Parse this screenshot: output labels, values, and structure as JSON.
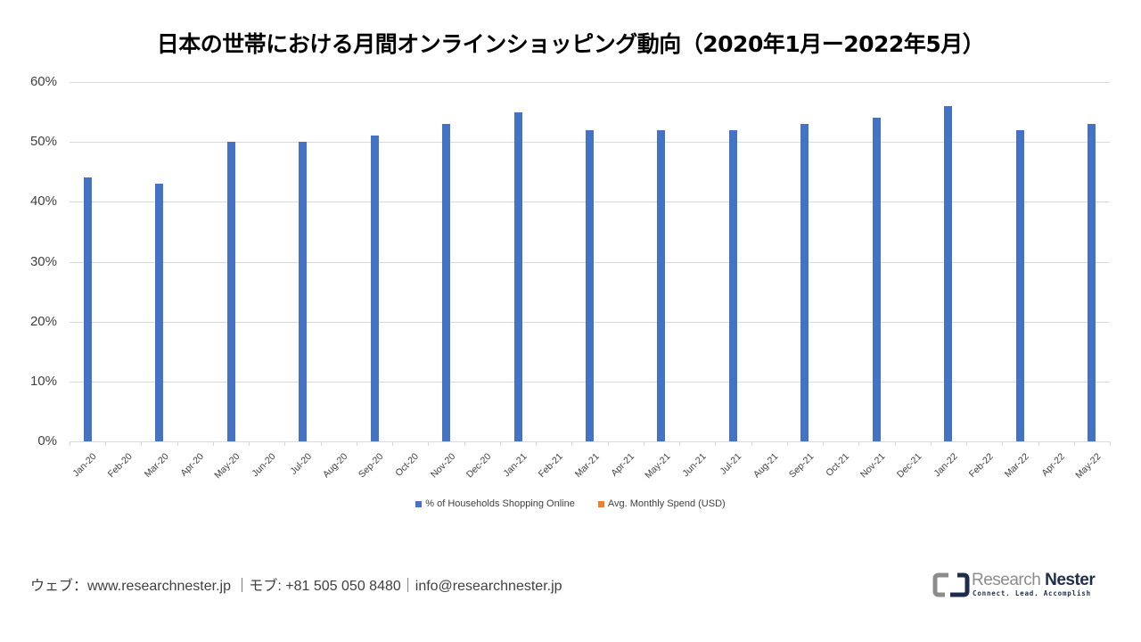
{
  "title": "日本の世帯における月間オンラインショッピング動向（2020年1月ー2022年5月）",
  "chart_data": {
    "type": "bar",
    "title": "日本の世帯における月間オンラインショッピング動向（2020年1月ー2022年5月）",
    "xlabel": "",
    "ylabel": "",
    "ylim": [
      0,
      60
    ],
    "yticks": [
      "0%",
      "10%",
      "20%",
      "30%",
      "40%",
      "50%",
      "60%"
    ],
    "grid": true,
    "legend_position": "bottom",
    "categories": [
      "Jan-20",
      "Feb-20",
      "Mar-20",
      "Apr-20",
      "May-20",
      "Jun-20",
      "Jul-20",
      "Aug-20",
      "Sep-20",
      "Oct-20",
      "Nov-20",
      "Dec-20",
      "Jan-21",
      "Feb-21",
      "Mar-21",
      "Apr-21",
      "May-21",
      "Jun-21",
      "Jul-21",
      "Aug-21",
      "Sep-21",
      "Oct-21",
      "Nov-21",
      "Dec-21",
      "Jan-22",
      "Feb-22",
      "Mar-22",
      "Apr-22",
      "May-22"
    ],
    "series": [
      {
        "name": "% of Households Shopping Online",
        "color": "#4472c4",
        "values": [
          44,
          null,
          43,
          null,
          50,
          null,
          50,
          null,
          51,
          null,
          53,
          null,
          55,
          null,
          52,
          null,
          52,
          null,
          52,
          null,
          53,
          null,
          54,
          null,
          56,
          null,
          52,
          null,
          53
        ]
      },
      {
        "name": "Avg. Monthly Spend (USD)",
        "color": "#ed7d31",
        "values": [
          null,
          null,
          null,
          null,
          null,
          null,
          null,
          null,
          null,
          null,
          null,
          null,
          null,
          null,
          null,
          null,
          null,
          null,
          null,
          null,
          null,
          null,
          null,
          null,
          null,
          null,
          null,
          null,
          null
        ]
      }
    ]
  },
  "legend": [
    {
      "label": "% of Households Shopping Online",
      "color": "#4472c4"
    },
    {
      "label": "Avg. Monthly Spend (USD)",
      "color": "#ed7d31"
    }
  ],
  "footer": {
    "text": "ウェブ：www.researchnester.jp ｜モブ: +81 505 050 8480｜info@researchnester.jp"
  },
  "logo": {
    "word1": "Research",
    "word2": "Nester",
    "tagline": "Connect. Lead. Accomplish"
  }
}
